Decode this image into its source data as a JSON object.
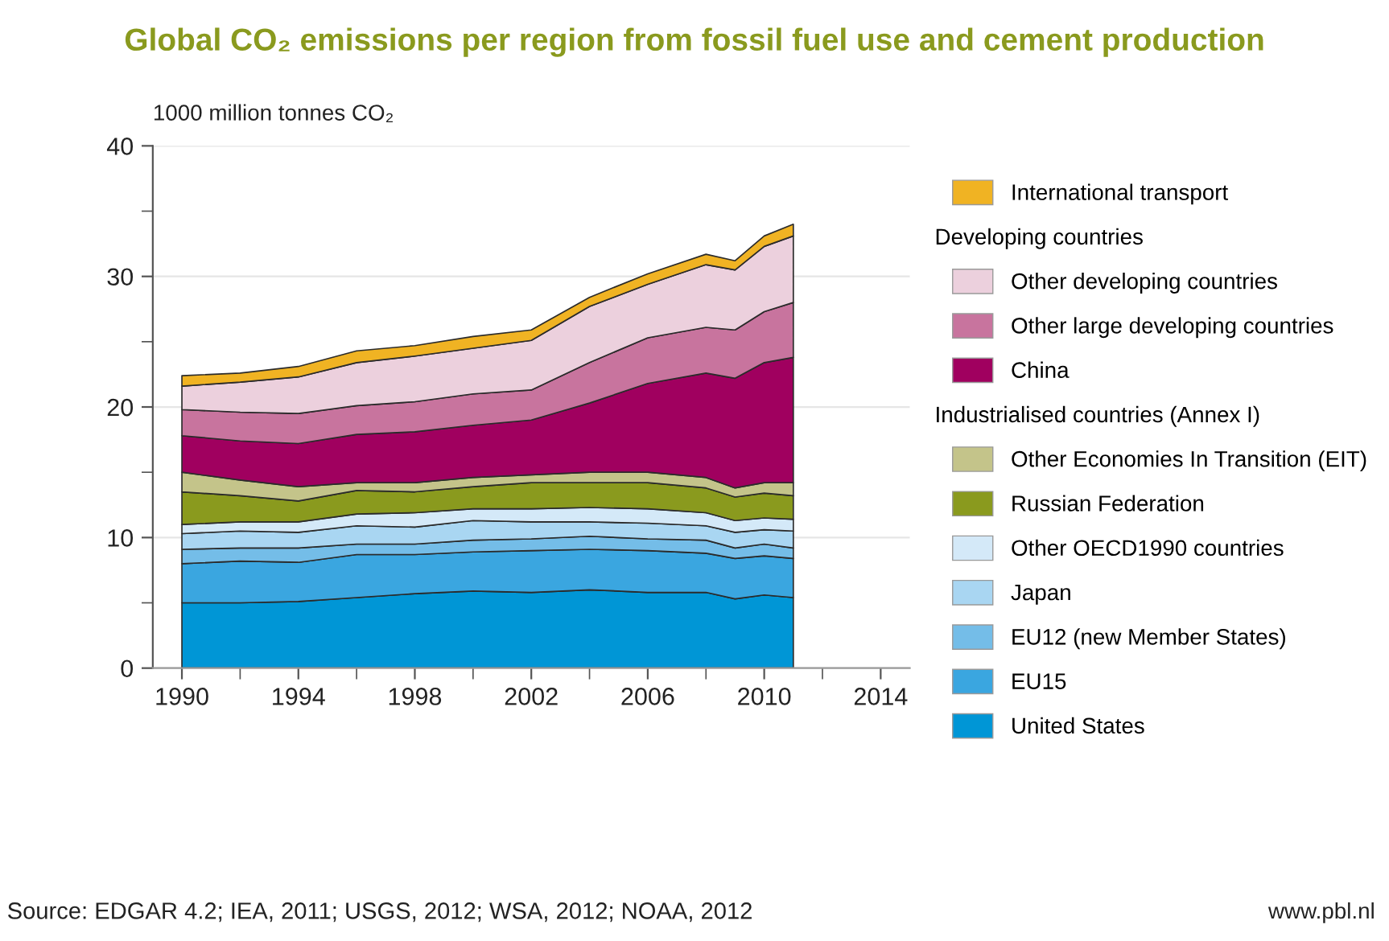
{
  "chart_data": {
    "type": "area",
    "stacked": true,
    "title": "Global CO₂ emissions per region from fossil fuel use and cement production",
    "ylabel": "1000 million tonnes CO₂",
    "x": [
      1990,
      1992,
      1994,
      1996,
      1998,
      2000,
      2002,
      2004,
      2006,
      2008,
      2009,
      2010,
      2011
    ],
    "series": [
      {
        "name": "United States",
        "color": "#0096d6",
        "values": [
          5.0,
          5.0,
          5.1,
          5.4,
          5.7,
          5.9,
          5.8,
          6.0,
          5.8,
          5.8,
          5.3,
          5.6,
          5.4
        ]
      },
      {
        "name": "EU15",
        "color": "#3aa6e0",
        "values": [
          3.0,
          3.2,
          3.0,
          3.3,
          3.0,
          3.0,
          3.2,
          3.1,
          3.2,
          3.0,
          3.1,
          3.0,
          3.0
        ]
      },
      {
        "name": "EU12 (new Member States)",
        "color": "#74bde8",
        "values": [
          1.1,
          1.0,
          1.1,
          0.8,
          0.8,
          0.9,
          0.9,
          1.0,
          0.9,
          1.0,
          0.8,
          0.9,
          0.8
        ]
      },
      {
        "name": "Japan",
        "color": "#a9d6f2",
        "values": [
          1.2,
          1.3,
          1.2,
          1.4,
          1.3,
          1.5,
          1.3,
          1.1,
          1.2,
          1.1,
          1.2,
          1.1,
          1.3
        ]
      },
      {
        "name": "Other OECD1990 countries",
        "color": "#d4e9f8",
        "values": [
          0.7,
          0.7,
          0.8,
          0.9,
          1.1,
          0.9,
          1.0,
          1.1,
          1.1,
          1.0,
          0.9,
          0.9,
          0.9
        ]
      },
      {
        "name": "Russian Federation",
        "color": "#8a9a1e",
        "values": [
          2.5,
          2.0,
          1.6,
          1.8,
          1.6,
          1.7,
          2.0,
          1.9,
          2.0,
          1.9,
          1.8,
          1.9,
          1.8
        ]
      },
      {
        "name": "Other Economies In Transition (EIT)",
        "color": "#c4c48a",
        "values": [
          1.5,
          1.2,
          1.1,
          0.6,
          0.7,
          0.7,
          0.6,
          0.8,
          0.8,
          0.8,
          0.7,
          0.8,
          1.0
        ]
      },
      {
        "name": "China",
        "color": "#a0005f",
        "values": [
          2.8,
          3.0,
          3.3,
          3.7,
          3.9,
          4.0,
          4.2,
          5.3,
          6.8,
          8.0,
          8.4,
          9.2,
          9.6
        ]
      },
      {
        "name": "Other large developing countries",
        "color": "#c8749e",
        "values": [
          2.0,
          2.2,
          2.3,
          2.2,
          2.3,
          2.4,
          2.3,
          3.1,
          3.5,
          3.5,
          3.7,
          3.9,
          4.2
        ]
      },
      {
        "name": "Other developing countries",
        "color": "#ecd0dd",
        "values": [
          1.8,
          2.3,
          2.8,
          3.3,
          3.5,
          3.5,
          3.8,
          4.3,
          4.1,
          4.8,
          4.6,
          5.0,
          5.1
        ]
      },
      {
        "name": "International transport",
        "color": "#f0b323",
        "values": [
          0.8,
          0.7,
          0.8,
          0.9,
          0.8,
          0.9,
          0.8,
          0.7,
          0.8,
          0.8,
          0.7,
          0.8,
          0.9
        ]
      }
    ],
    "xlim": [
      1989,
      2015
    ],
    "xticks": [
      1990,
      {
        "value": 1992,
        "label": null
      },
      1994,
      {
        "value": 1996,
        "label": null
      },
      1998,
      {
        "value": 2000,
        "label": null
      },
      2002,
      {
        "value": 2004,
        "label": null
      },
      2006,
      {
        "value": 2008,
        "label": null
      },
      2010,
      {
        "value": 2012,
        "label": null
      },
      2014
    ],
    "ylim": [
      0,
      40
    ],
    "yticks": [
      0,
      {
        "value": 5,
        "label": null
      },
      10,
      {
        "value": 15,
        "label": null
      },
      20,
      {
        "value": 25,
        "label": null
      },
      30,
      {
        "value": 35,
        "label": null
      },
      40
    ],
    "grid": "y",
    "legend": "right",
    "annotations": [
      "Developing countries",
      "Industrialised countries (Annex I)",
      "Source: EDGAR 4.2; IEA, 2011; USGS, 2012; WSA, 2012; NOAA, 2012",
      "www.pbl.nl"
    ]
  }
}
